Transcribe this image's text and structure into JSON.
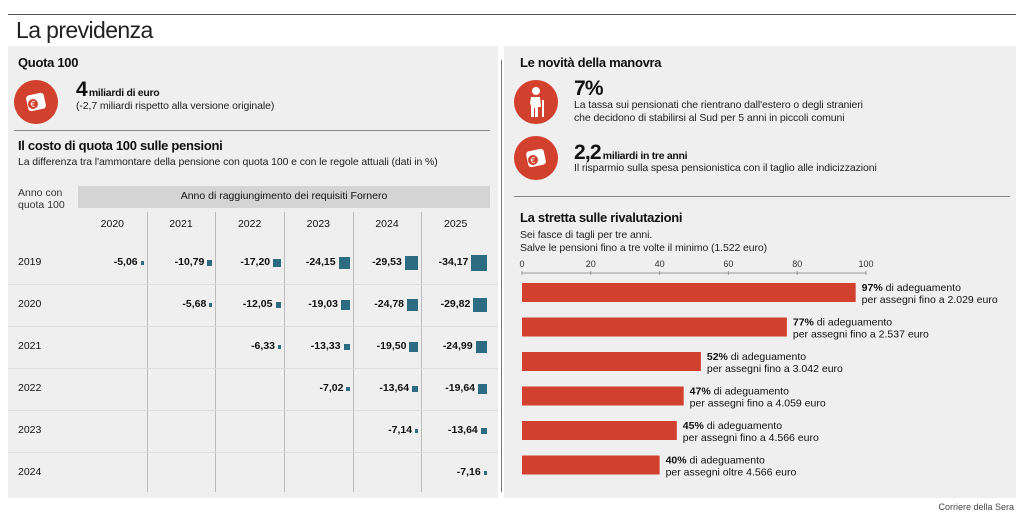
{
  "page": {
    "title": "La previdenza",
    "credit": "Corriere della Sera"
  },
  "quota100": {
    "heading": "Quota 100",
    "big_number": "4",
    "big_unit": "miliardi di euro",
    "note": "(-2,7 miliardi rispetto alla versione originale)",
    "icon": "money-bag-icon"
  },
  "costo": {
    "heading": "Il costo di quota 100 sulle pensioni",
    "subtitle": "La differenza tra  l'ammontare della pensione con quota 100 e con le regole attuali (dati in %)"
  },
  "novita": {
    "heading": "Le novità della manovra",
    "item1": {
      "big_number": "7%",
      "text_line1": "La tassa sui pensionati  che rientrano dall'estero o degli stranieri",
      "text_line2": "che decidono di stabilirsi al Sud per 5 anni in piccoli comuni",
      "icon": "elderly-person-icon"
    },
    "item2": {
      "big_number": "2,2",
      "big_unit": "miliardi in tre anni",
      "text": "Il risparmio sulla spesa pensionistica con il taglio alle indicizzazioni",
      "icon": "money-bag-icon"
    }
  },
  "stretta": {
    "heading": "La stretta sulle rivalutazioni",
    "subtitle_line1": "Sei fasce di tagli per tre anni.",
    "subtitle_line2": "Salve le pensioni fino a tre volte il minimo (1.522 euro)"
  },
  "colors": {
    "accent": "#d2402e",
    "teal": "#2d6c80",
    "panel": "#efefef"
  },
  "chart_data": [
    {
      "type": "table",
      "title": "Il costo di quota 100 sulle pensioni",
      "row_header_label": "Anno con quota 100",
      "col_header_label": "Anno di raggiungimento dei requisiti Fornero",
      "columns": [
        "2020",
        "2021",
        "2022",
        "2023",
        "2024",
        "2025"
      ],
      "rows": [
        {
          "year": "2019",
          "values": [
            "-5,06",
            "-10,79",
            "-17,20",
            "-24,15",
            "-29,53",
            "-34,17"
          ],
          "nums": [
            -5.06,
            -10.79,
            -17.2,
            -24.15,
            -29.53,
            -34.17
          ]
        },
        {
          "year": "2020",
          "values": [
            null,
            "-5,68",
            "-12,05",
            "-19,03",
            "-24,78",
            "-29,82"
          ],
          "nums": [
            null,
            -5.68,
            -12.05,
            -19.03,
            -24.78,
            -29.82
          ]
        },
        {
          "year": "2021",
          "values": [
            null,
            null,
            "-6,33",
            "-13,33",
            "-19,50",
            "-24,99"
          ],
          "nums": [
            null,
            null,
            -6.33,
            -13.33,
            -19.5,
            -24.99
          ]
        },
        {
          "year": "2022",
          "values": [
            null,
            null,
            null,
            "-7,02",
            "-13,64",
            "-19,64"
          ],
          "nums": [
            null,
            null,
            null,
            -7.02,
            -13.64,
            -19.64
          ]
        },
        {
          "year": "2023",
          "values": [
            null,
            null,
            null,
            null,
            "-7,14",
            "-13,64"
          ],
          "nums": [
            null,
            null,
            null,
            null,
            -7.14,
            -13.64
          ]
        },
        {
          "year": "2024",
          "values": [
            null,
            null,
            null,
            null,
            null,
            "-7,16"
          ],
          "nums": [
            null,
            null,
            null,
            null,
            null,
            -7.16
          ]
        }
      ]
    },
    {
      "type": "bar",
      "orientation": "horizontal",
      "title": "La stretta sulle rivalutazioni",
      "xlim": [
        0,
        100
      ],
      "ticks": [
        "0",
        "20",
        "40",
        "60",
        "80",
        "100"
      ],
      "bars": [
        {
          "pct": "97%",
          "value": 97,
          "label_rest": " di adeguamento",
          "line2": "per assegni fino a 2.029 euro"
        },
        {
          "pct": "77%",
          "value": 77,
          "label_rest": " di adeguamento",
          "line2": "per assegni fino a 2.537 euro"
        },
        {
          "pct": "52%",
          "value": 52,
          "label_rest": " di adeguamento",
          "line2": "per assegni fino a 3.042 euro"
        },
        {
          "pct": "47%",
          "value": 47,
          "label_rest": " di adeguamento",
          "line2": "per assegni fino a 4.059 euro"
        },
        {
          "pct": "45%",
          "value": 45,
          "label_rest": " di adeguamento",
          "line2": "per assegni fino a 4.566 euro"
        },
        {
          "pct": "40%",
          "value": 40,
          "label_rest": " di adeguamento",
          "line2": "per assegni oltre 4.566 euro"
        }
      ]
    }
  ]
}
